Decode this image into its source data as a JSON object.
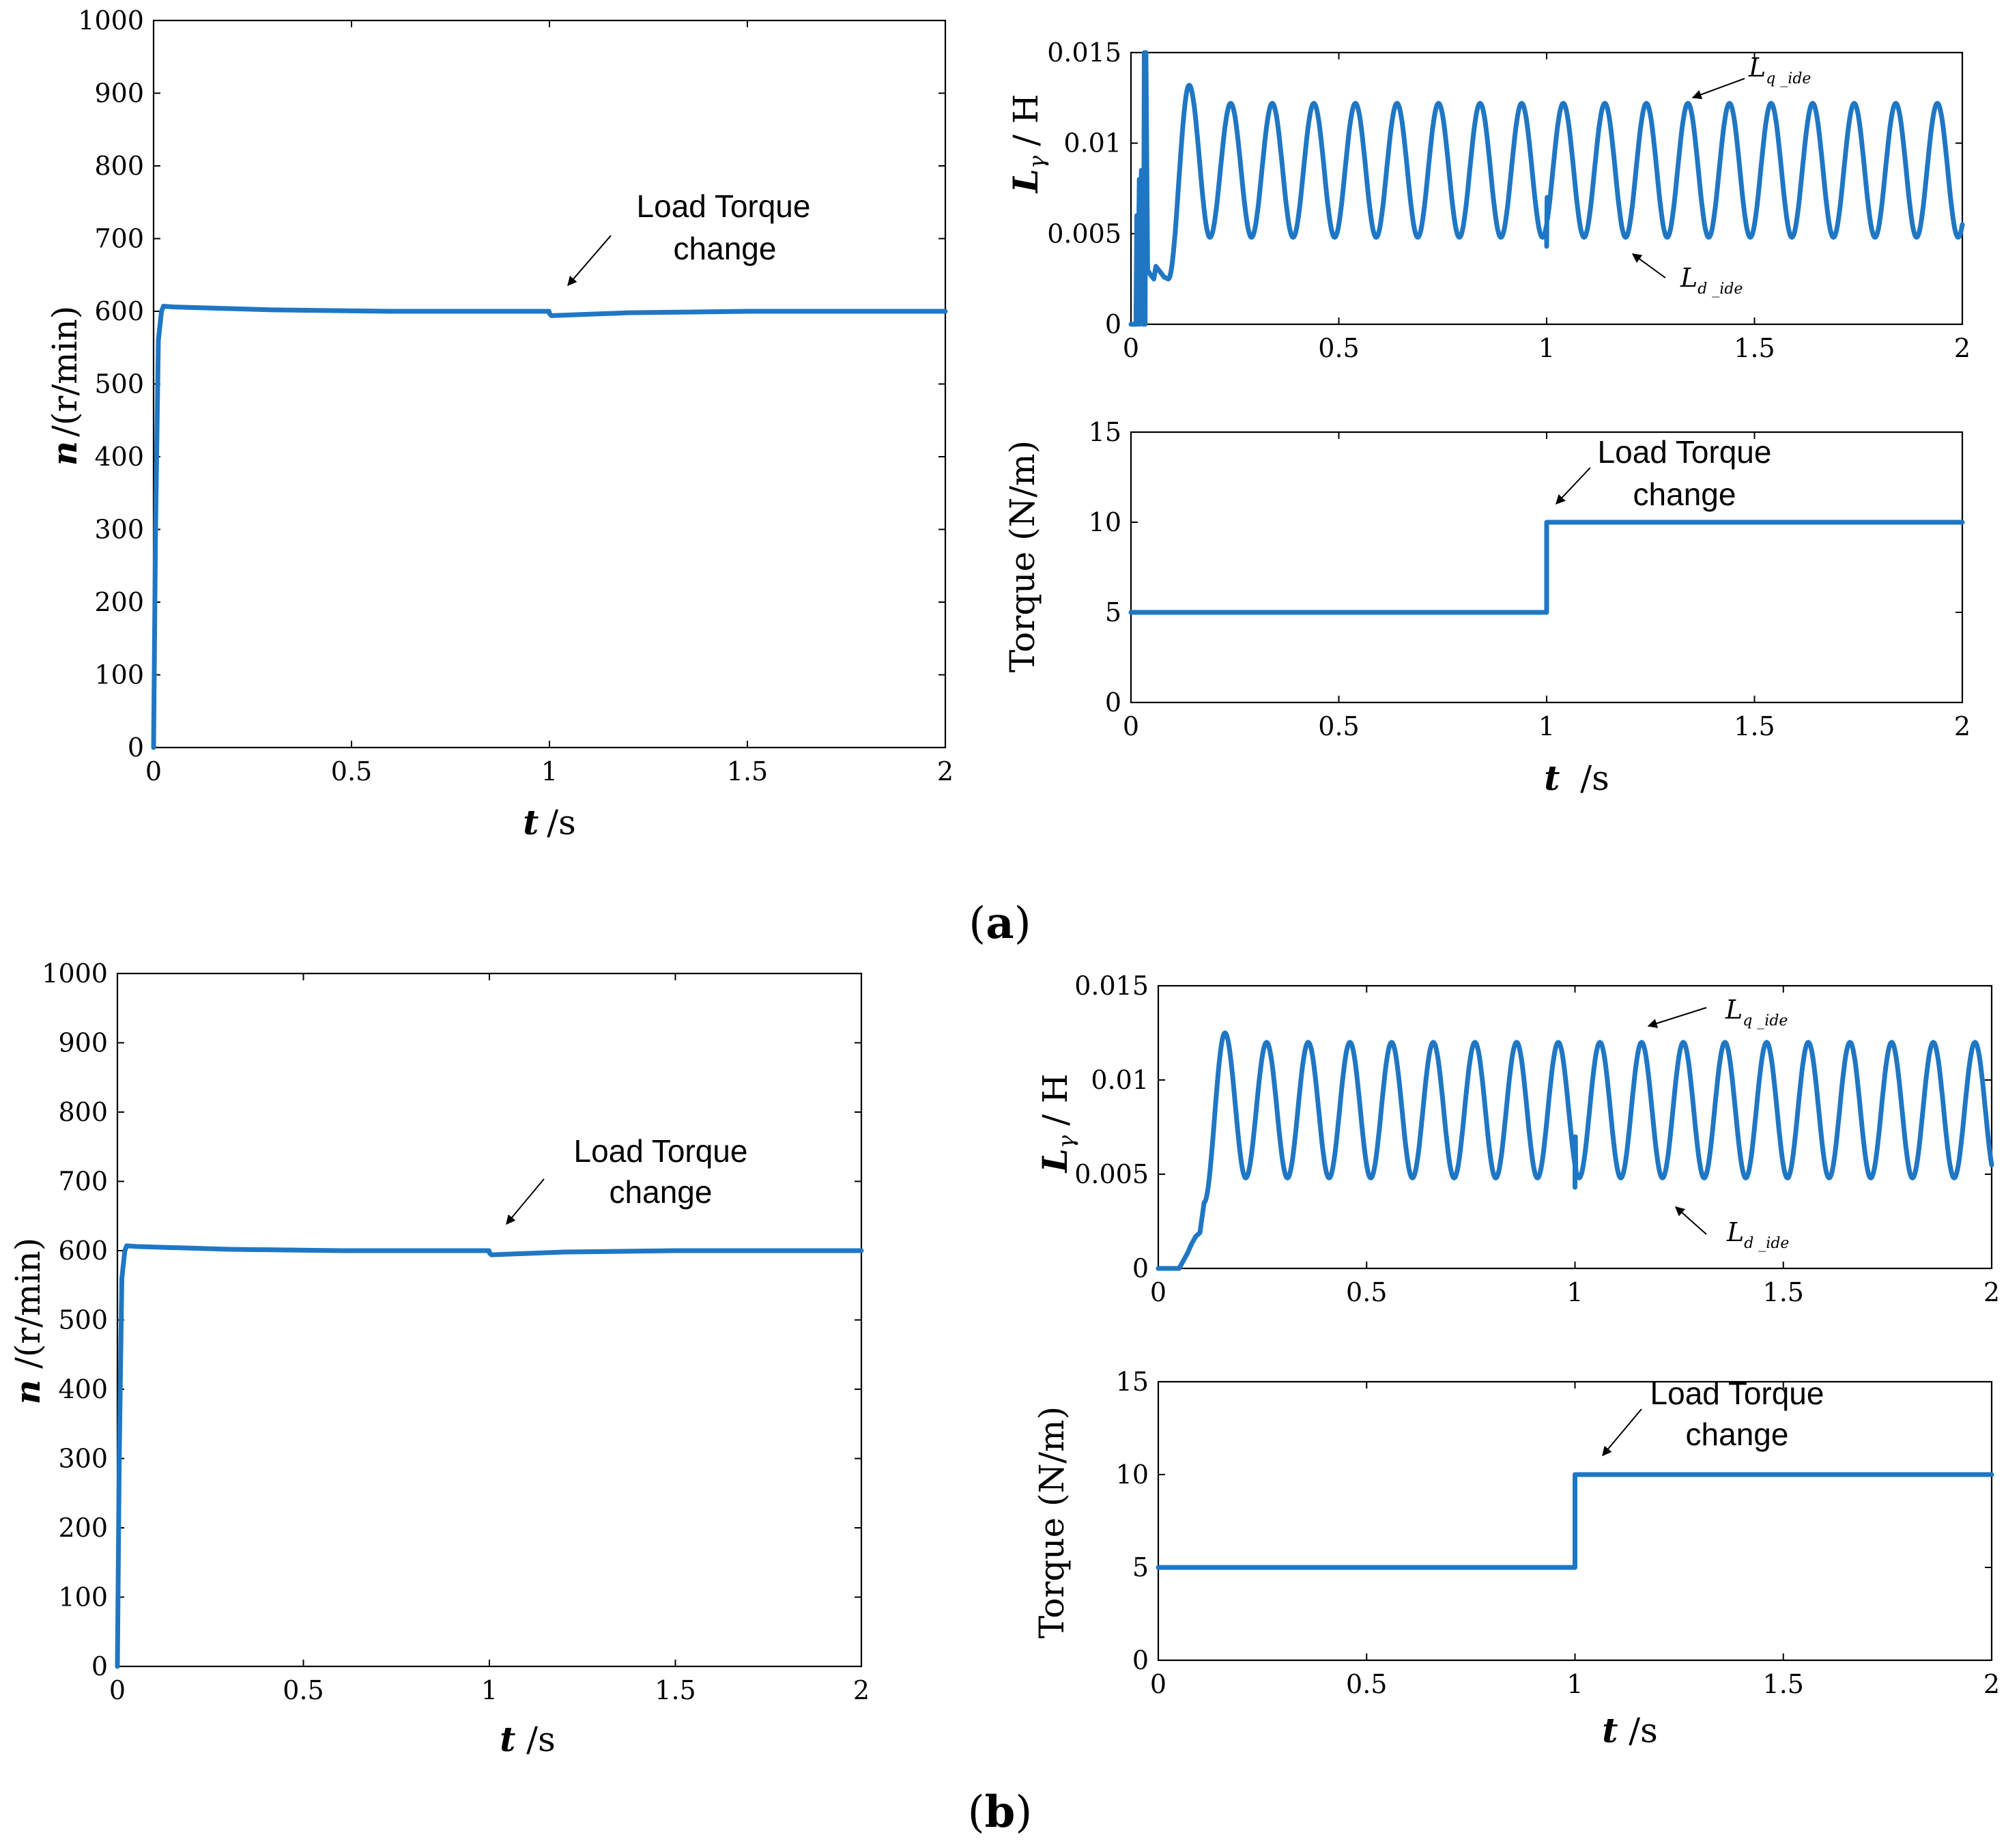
{
  "panels": {
    "a": {
      "label": "a"
    },
    "b": {
      "label": "b"
    }
  },
  "labels": {
    "speed_ylabel_var": "n",
    "speed_ylabel_unit": "/(r/min)",
    "induct_ylabel_var": "L",
    "induct_ylabel_sub": "γ",
    "induct_ylabel_unit": "/ H",
    "torque_ylabel": "Torque (N/m)",
    "xlabel_var": "t",
    "xlabel_unit": "/s",
    "annotation_line1": "Load Torque",
    "annotation_line2": "change",
    "lq_var": "L",
    "lq_sub": "q _ide",
    "ld_var": "L",
    "ld_sub": "d _ide"
  },
  "chart_data": [
    {
      "id": "a-speed",
      "panel": "a",
      "type": "line",
      "xlabel": "t /s",
      "ylabel": "n /(r/min)",
      "xlim": [
        0,
        2
      ],
      "ylim": [
        0,
        1000
      ],
      "xticks": [
        0,
        0.5,
        1,
        1.5,
        2
      ],
      "xtick_labels": [
        "0",
        "0.5",
        "1",
        "1.5",
        "2"
      ],
      "yticks": [
        0,
        100,
        200,
        300,
        400,
        500,
        600,
        700,
        800,
        900,
        1000
      ],
      "ytick_labels": [
        "0",
        "100",
        "200",
        "300",
        "400",
        "500",
        "600",
        "700",
        "800",
        "900",
        "1000"
      ],
      "annotations": [
        "Load Torque change"
      ],
      "series": [
        {
          "name": "n",
          "x": [
            0,
            0.005,
            0.012,
            0.02,
            0.025,
            0.05,
            0.3,
            0.6,
            0.999,
            1.0,
            1.005,
            1.2,
            1.5,
            2.0
          ],
          "y": [
            0,
            300,
            560,
            600,
            607,
            606,
            602,
            600,
            600,
            597,
            594,
            598,
            600,
            600
          ]
        }
      ]
    },
    {
      "id": "a-inductance",
      "panel": "a",
      "type": "line",
      "xlabel": "",
      "ylabel": "Lγ / H",
      "xlim": [
        0,
        2
      ],
      "ylim": [
        0,
        0.015
      ],
      "xticks": [
        0,
        0.5,
        1,
        1.5,
        2
      ],
      "xtick_labels": [
        "0",
        "0.5",
        "1",
        "1.5",
        "2"
      ],
      "yticks": [
        0,
        0.005,
        0.01,
        0.015
      ],
      "ytick_labels": [
        "0",
        "0.005",
        "0.01",
        "0.015"
      ],
      "curve_labels": [
        "Lq _ide",
        "Ld _ide"
      ],
      "series": [
        {
          "name": "Lγ",
          "x": [
            0,
            0.012,
            0.014,
            0.016,
            0.02,
            0.022,
            0.025,
            0.03,
            0.032,
            0.034,
            0.036,
            0.04,
            0.045,
            0.055,
            0.06,
            0.08,
            0.09
          ],
          "y": [
            0,
            0,
            0.006,
            0,
            0.008,
            0,
            0.0085,
            0,
            0.015,
            0,
            0.015,
            0.003,
            0.0028,
            0.0025,
            0.0032,
            0.0026,
            0.0025
          ],
          "oscillation": {
            "start": 0.09,
            "end": 2.0,
            "period": 0.1,
            "min": 0.0048,
            "max": 0.0122,
            "first_peak": 0.0132,
            "glitch_at": 1.0,
            "glitch_min": 0.0043
          }
        }
      ]
    },
    {
      "id": "a-torque",
      "panel": "a",
      "type": "line",
      "xlabel": "t /s",
      "ylabel": "Torque (N/m)",
      "xlim": [
        0,
        2
      ],
      "ylim": [
        0,
        15
      ],
      "xticks": [
        0,
        0.5,
        1,
        1.5,
        2
      ],
      "xtick_labels": [
        "0",
        "0.5",
        "1",
        "1.5",
        "2"
      ],
      "yticks": [
        0,
        5,
        10,
        15
      ],
      "ytick_labels": [
        "0",
        "5",
        "10",
        "15"
      ],
      "annotations": [
        "Load Torque change"
      ],
      "series": [
        {
          "name": "Torque",
          "x": [
            0,
            1.0,
            1.0,
            2.0
          ],
          "y": [
            5,
            5,
            10,
            10
          ]
        }
      ]
    },
    {
      "id": "b-speed",
      "panel": "b",
      "type": "line",
      "xlabel": "t /s",
      "ylabel": "n /(r/min)",
      "xlim": [
        0,
        2
      ],
      "ylim": [
        0,
        1000
      ],
      "xticks": [
        0,
        0.5,
        1,
        1.5,
        2
      ],
      "xtick_labels": [
        "0",
        "0.5",
        "1",
        "1.5",
        "2"
      ],
      "yticks": [
        0,
        100,
        200,
        300,
        400,
        500,
        600,
        700,
        800,
        900,
        1000
      ],
      "ytick_labels": [
        "0",
        "100",
        "200",
        "300",
        "400",
        "500",
        "600",
        "700",
        "800",
        "900",
        "1000"
      ],
      "annotations": [
        "Load Torque change"
      ],
      "series": [
        {
          "name": "n",
          "x": [
            0,
            0.005,
            0.012,
            0.02,
            0.025,
            0.05,
            0.3,
            0.6,
            0.999,
            1.0,
            1.005,
            1.2,
            1.5,
            2.0
          ],
          "y": [
            0,
            300,
            560,
            600,
            607,
            606,
            602,
            600,
            600,
            597,
            594,
            598,
            600,
            600
          ]
        }
      ]
    },
    {
      "id": "b-inductance",
      "panel": "b",
      "type": "line",
      "xlabel": "",
      "ylabel": "Lγ /H",
      "xlim": [
        0,
        2
      ],
      "ylim": [
        0,
        0.015
      ],
      "xticks": [
        0,
        0.5,
        1,
        1.5,
        2
      ],
      "xtick_labels": [
        "0",
        "0.5",
        "1",
        "1.5",
        "2"
      ],
      "yticks": [
        0,
        0.005,
        0.01,
        0.015
      ],
      "ytick_labels": [
        "0",
        "0.005",
        "0.01",
        "0.015"
      ],
      "curve_labels": [
        "Lq _ide",
        "Ld _ide"
      ],
      "series": [
        {
          "name": "Lγ",
          "x": [
            0,
            0.05,
            0.07,
            0.08,
            0.09,
            0.1,
            0.11
          ],
          "y": [
            0,
            0,
            0.0008,
            0.0013,
            0.0017,
            0.0019,
            0.0035
          ],
          "oscillation": {
            "start": 0.11,
            "end": 2.0,
            "period": 0.1,
            "min": 0.0048,
            "max": 0.012,
            "first_peak": 0.0125,
            "glitch_at": 1.0,
            "glitch_min": 0.0043
          }
        }
      ]
    },
    {
      "id": "b-torque",
      "panel": "b",
      "type": "line",
      "xlabel": "t /s",
      "ylabel": "Torque (N/m)",
      "xlim": [
        0,
        2
      ],
      "ylim": [
        0,
        15
      ],
      "xticks": [
        0,
        0.5,
        1,
        1.5,
        2
      ],
      "xtick_labels": [
        "0",
        "0.5",
        "1",
        "1.5",
        "2"
      ],
      "yticks": [
        0,
        5,
        10,
        15
      ],
      "ytick_labels": [
        "0",
        "5",
        "10",
        "15"
      ],
      "annotations": [
        "Load Torque change"
      ],
      "series": [
        {
          "name": "Torque",
          "x": [
            0,
            1.0,
            1.0,
            2.0
          ],
          "y": [
            5,
            5,
            10,
            10
          ]
        }
      ]
    }
  ]
}
